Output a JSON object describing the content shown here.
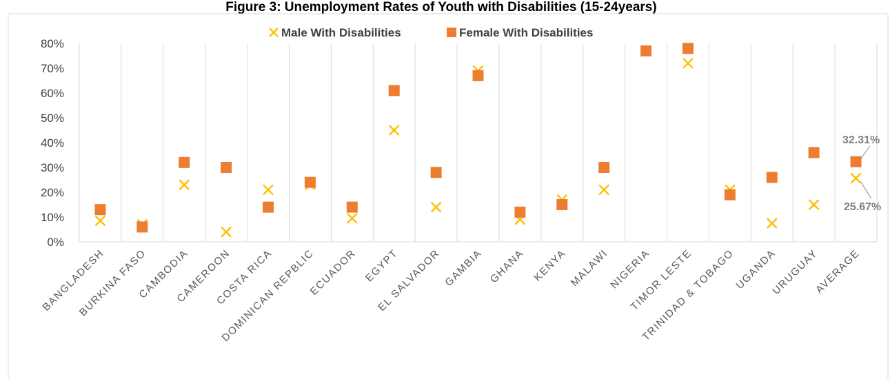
{
  "chart_data": {
    "type": "scatter",
    "title": "Figure 3: Unemployment Rates of Youth with Disabilities (15-24years)",
    "categories": [
      "BANGLADESH",
      "BURKINA FASO",
      "CAMBODIA",
      "CAMEROON",
      "COSTA RICA",
      "DOMINICAN REPBLIC",
      "ECUADOR",
      "EGYPT",
      "EL SALVADOR",
      "GAMBIA",
      "GHANA",
      "KENYA",
      "MALAWI",
      "NIGERIA",
      "TIMOR LESTE",
      "TRINIDAD & TOBAGO",
      "UGANDA",
      "URUGUAY",
      "AVERAGE"
    ],
    "series": [
      {
        "name": "Male With Disabilities",
        "marker": "x",
        "color": "#FFC000",
        "values": [
          8.5,
          7,
          23,
          4,
          21,
          23,
          9.5,
          45,
          14,
          69,
          9,
          17,
          21,
          77,
          72,
          21,
          7.5,
          15,
          25.67
        ]
      },
      {
        "name": "Female With Disabilities",
        "marker": "square",
        "color": "#ED7D31",
        "values": [
          13,
          6,
          32,
          30,
          14,
          24,
          14,
          61,
          28,
          67,
          12,
          15,
          30,
          77,
          78,
          19,
          26,
          36,
          32.31
        ]
      }
    ],
    "yticks": [
      "0%",
      "10%",
      "20%",
      "30%",
      "40%",
      "50%",
      "60%",
      "70%",
      "80%"
    ],
    "ylim": [
      0,
      80
    ],
    "annotations": {
      "female_average": "32.31%",
      "male_average": "25.67%"
    },
    "grid": "vertical",
    "legend_position": "top"
  }
}
